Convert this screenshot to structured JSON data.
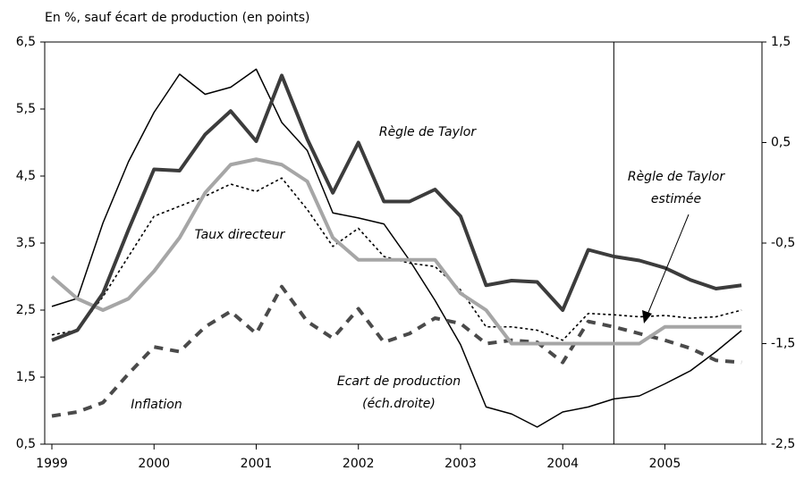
{
  "chart_data": {
    "type": "line",
    "subtitle": "En %, sauf écart de production (en points)",
    "x": [
      1999,
      1999.25,
      1999.5,
      1999.75,
      2000,
      2000.25,
      2000.5,
      2000.75,
      2001,
      2001.25,
      2001.5,
      2001.75,
      2002,
      2002.25,
      2002.5,
      2002.75,
      2003,
      2003.25,
      2003.5,
      2003.75,
      2004,
      2004.25,
      2004.5,
      2004.75,
      2005,
      2005.25,
      2005.5,
      2005.75
    ],
    "series": [
      {
        "name": "Règle de Taylor",
        "color": "#3c3c3c",
        "style": "solid-thick",
        "values": [
          2.05,
          2.2,
          2.75,
          3.7,
          4.6,
          4.58,
          5.12,
          5.47,
          5.02,
          6.0,
          5.05,
          4.25,
          5.0,
          4.12,
          4.12,
          4.3,
          3.9,
          2.87,
          2.94,
          2.92,
          2.5,
          3.4,
          3.3,
          3.24,
          3.13,
          2.95,
          2.82,
          2.87
        ]
      },
      {
        "name": "Taux directeur",
        "color": "#a6a6a6",
        "style": "solid-thick",
        "values": [
          3.0,
          2.67,
          2.5,
          2.67,
          3.08,
          3.58,
          4.25,
          4.67,
          4.75,
          4.67,
          4.42,
          3.58,
          3.25,
          3.25,
          3.25,
          3.25,
          2.75,
          2.5,
          2.0,
          2.0,
          2.0,
          2.0,
          2.0,
          2.0,
          2.25,
          2.25,
          2.25,
          2.25
        ]
      },
      {
        "name": "Règle de Taylor estimée",
        "color": "#000000",
        "style": "dotted",
        "values": [
          2.13,
          2.2,
          2.7,
          3.3,
          3.9,
          4.05,
          4.2,
          4.38,
          4.27,
          4.47,
          4.0,
          3.45,
          3.72,
          3.3,
          3.2,
          3.15,
          2.8,
          2.25,
          2.25,
          2.2,
          2.05,
          2.45,
          2.43,
          2.4,
          2.42,
          2.38,
          2.4,
          2.5
        ]
      },
      {
        "name": "Inflation",
        "color": "#4a4a4a",
        "style": "dashed",
        "values": [
          0.92,
          0.98,
          1.12,
          1.55,
          1.95,
          1.88,
          2.25,
          2.48,
          2.15,
          2.85,
          2.33,
          2.08,
          2.52,
          2.02,
          2.15,
          2.38,
          2.3,
          2.0,
          2.05,
          2.02,
          1.72,
          2.33,
          2.25,
          2.15,
          2.05,
          1.93,
          1.75,
          1.72
        ]
      },
      {
        "name": "Ecart de production (éch.droite)",
        "color": "#000000",
        "style": "solid-thin",
        "axis": "y2",
        "values": [
          -1.13,
          -1.05,
          -0.3,
          0.31,
          0.8,
          1.18,
          0.98,
          1.05,
          1.23,
          0.7,
          0.42,
          -0.2,
          -0.25,
          -0.31,
          -0.67,
          -1.07,
          -1.51,
          -2.13,
          -2.2,
          -2.33,
          -2.18,
          -2.13,
          -2.05,
          -2.02,
          -1.9,
          -1.77,
          -1.58,
          -1.37
        ]
      }
    ],
    "xlim": [
      1998.93,
      2005.95
    ],
    "xticks": [
      1999,
      2000,
      2001,
      2002,
      2003,
      2004,
      2005
    ],
    "ylim": [
      0.5,
      6.5
    ],
    "yticks": [
      {
        "value": 0.5,
        "label": "0,5"
      },
      {
        "value": 1.5,
        "label": "1,5"
      },
      {
        "value": 2.5,
        "label": "2,5"
      },
      {
        "value": 3.5,
        "label": "3,5"
      },
      {
        "value": 4.5,
        "label": "4,5"
      },
      {
        "value": 5.5,
        "label": "5,5"
      },
      {
        "value": 6.5,
        "label": "6,5"
      }
    ],
    "y2lim": [
      -2.5,
      1.5
    ],
    "y2ticks": [
      {
        "value": -2.5,
        "label": "-2,5"
      },
      {
        "value": -1.5,
        "label": "-1,5"
      },
      {
        "value": -0.5,
        "label": "-0,5"
      },
      {
        "value": 0.5,
        "label": "0,5"
      },
      {
        "value": 1.5,
        "label": "1,5"
      }
    ],
    "vline": 2004.5
  }
}
